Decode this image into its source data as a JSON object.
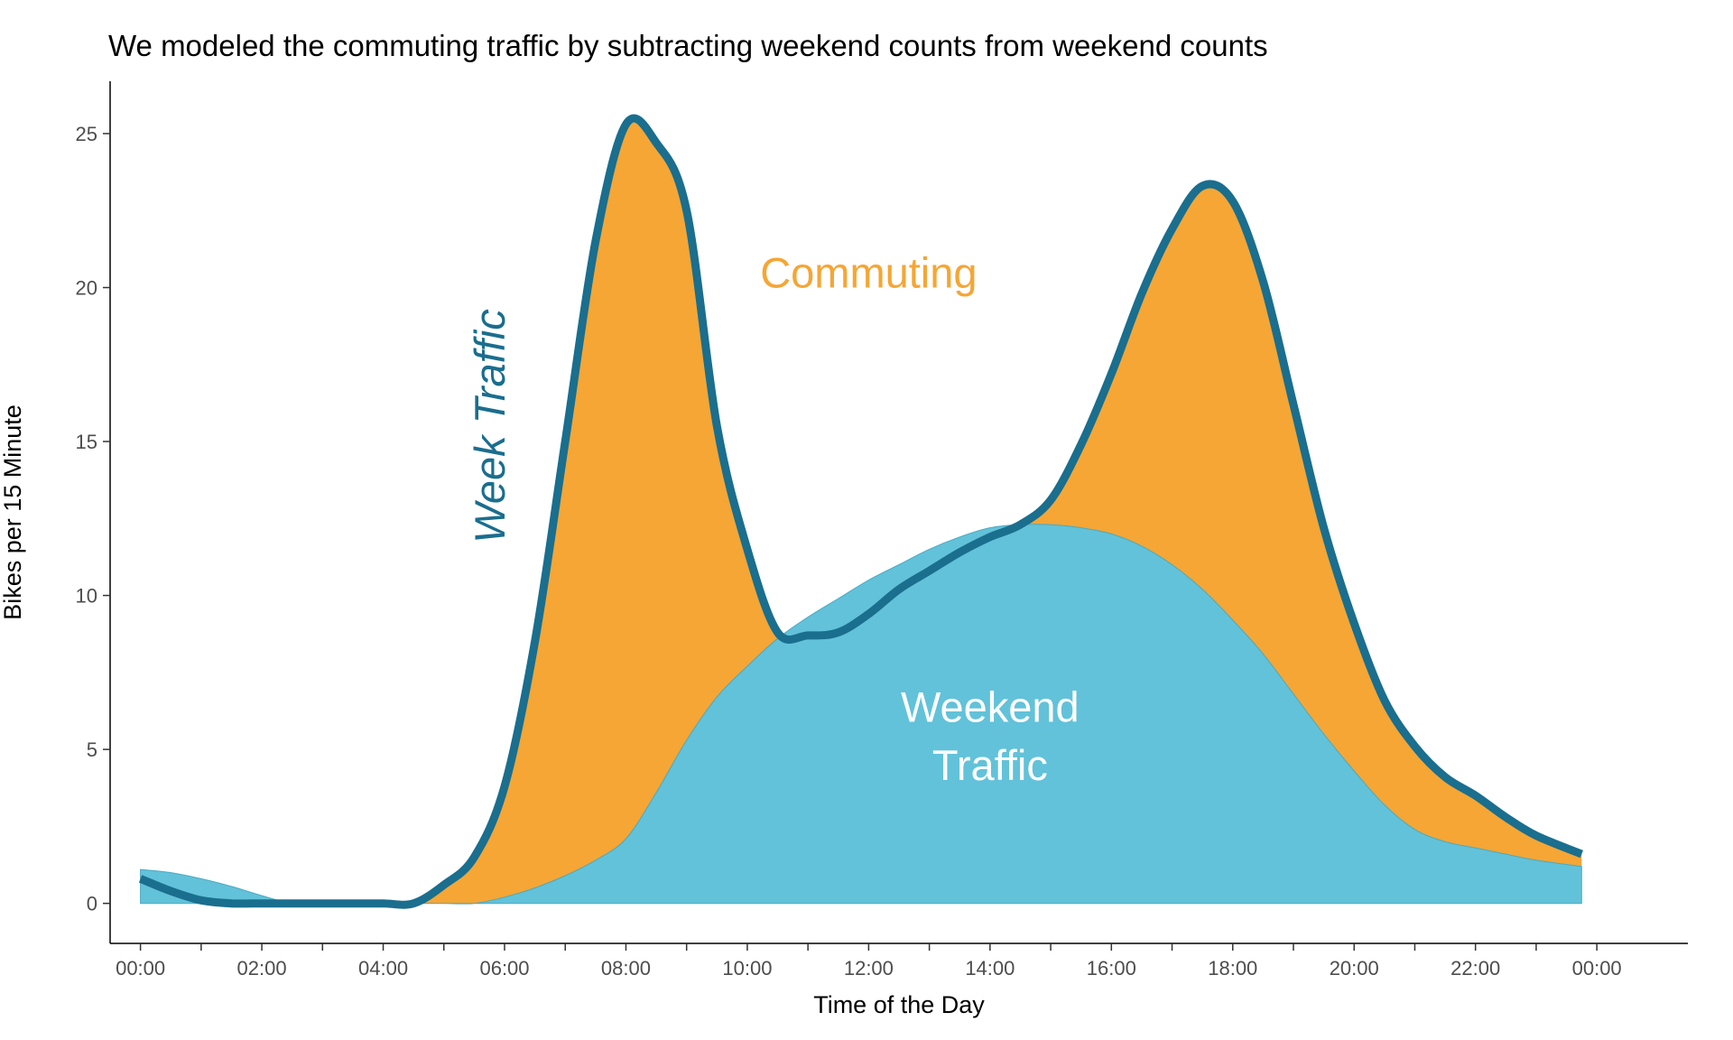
{
  "chart_data": {
    "type": "area",
    "title": "We modeled the commuting traffic by subtracting weekend counts from weekend counts",
    "xlabel": "Time of the Day",
    "ylabel": "Bikes per 15 Minute",
    "x_ticks": [
      "00:00",
      "02:00",
      "04:00",
      "06:00",
      "08:00",
      "10:00",
      "12:00",
      "14:00",
      "16:00",
      "18:00",
      "20:00",
      "22:00",
      "00:00"
    ],
    "y_ticks": [
      0,
      5,
      10,
      15,
      20,
      25
    ],
    "xlim": [
      -0.5,
      25.5
    ],
    "ylim": [
      -1.3,
      26.7
    ],
    "grid": false,
    "x_hours": [
      0,
      0.5,
      1,
      1.5,
      2,
      2.5,
      3,
      3.5,
      4,
      4.5,
      5,
      5.5,
      6,
      6.5,
      7,
      7.5,
      8,
      8.5,
      9,
      9.5,
      10,
      10.5,
      11,
      11.5,
      12,
      12.5,
      13,
      13.5,
      14,
      14.5,
      15,
      15.5,
      16,
      16.5,
      17,
      17.5,
      18,
      18.5,
      19,
      19.5,
      20,
      20.5,
      21,
      21.5,
      22,
      22.5,
      23,
      23.75
    ],
    "series": [
      {
        "name": "Week Traffic",
        "color": "#1a6e8e",
        "values": [
          0.8,
          0.4,
          0.1,
          0.0,
          0.0,
          0.0,
          0.0,
          0.0,
          0.0,
          0.0,
          0.6,
          1.5,
          3.8,
          8.5,
          15.0,
          21.5,
          25.3,
          24.7,
          22.5,
          15.5,
          11.5,
          8.8,
          8.7,
          8.8,
          9.4,
          10.2,
          10.8,
          11.4,
          11.9,
          12.3,
          13.1,
          14.9,
          17.2,
          19.8,
          21.9,
          23.3,
          22.8,
          20.2,
          16.2,
          12.2,
          9.1,
          6.6,
          5.1,
          4.1,
          3.5,
          2.8,
          2.2,
          1.6
        ]
      },
      {
        "name": "Weekend Traffic",
        "color": "#62c2d9",
        "values": [
          1.1,
          1.0,
          0.8,
          0.55,
          0.25,
          0.0,
          0.0,
          0.0,
          0.0,
          0.0,
          0.0,
          0.0,
          0.2,
          0.5,
          0.9,
          1.4,
          2.1,
          3.6,
          5.3,
          6.7,
          7.7,
          8.6,
          9.3,
          9.9,
          10.5,
          11.0,
          11.5,
          11.9,
          12.2,
          12.3,
          12.3,
          12.2,
          12.0,
          11.6,
          11.0,
          10.2,
          9.2,
          8.1,
          6.8,
          5.5,
          4.3,
          3.2,
          2.4,
          2.0,
          1.8,
          1.6,
          1.4,
          1.2
        ]
      }
    ],
    "fill_colors": {
      "commuting": "#f5a635",
      "weekend": "#62c2d9",
      "week_line": "#1a6e8e"
    },
    "annotations": [
      {
        "text": "Commuting",
        "x": 12.0,
        "y": 20.0,
        "color": "#f5a635"
      },
      {
        "text": "Weekend",
        "x": 14.0,
        "y": 5.9,
        "color": "#ffffff"
      },
      {
        "text": "Traffic",
        "x": 14.0,
        "y": 4.0,
        "color": "#ffffff"
      },
      {
        "text": "Week Traffic",
        "x": 6.0,
        "y": 15.5,
        "rotation": -90,
        "italic": true,
        "color": "#1a6e8e"
      }
    ]
  }
}
